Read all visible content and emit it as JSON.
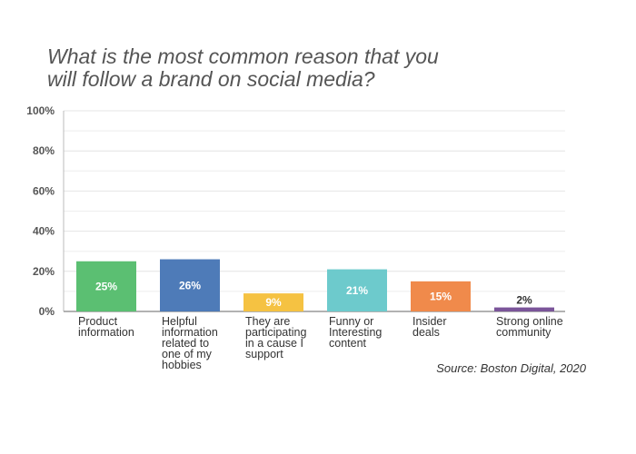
{
  "title_lines": [
    "What is the most common reason that you",
    "will follow a brand on social media?"
  ],
  "source": "Source: Boston Digital, 2020",
  "chart_data": {
    "type": "bar",
    "title": "What is the most common reason that you will follow a brand on social media?",
    "categories": [
      [
        "Product",
        "information"
      ],
      [
        "Helpful",
        "information",
        "related to",
        "one of my",
        "hobbies"
      ],
      [
        "They are",
        "participating",
        "in a cause I",
        "support"
      ],
      [
        "Funny or",
        "Interesting",
        "content"
      ],
      [
        "Insider",
        "deals"
      ],
      [
        "Strong online",
        "community"
      ]
    ],
    "values": [
      25,
      26,
      9,
      21,
      15,
      2
    ],
    "value_labels": [
      "25%",
      "26%",
      "9%",
      "21%",
      "15%",
      "2%"
    ],
    "colors": [
      "#5bbf72",
      "#4e7bb8",
      "#f5c242",
      "#6dcacc",
      "#f08a4b",
      "#7b559a"
    ],
    "value_label_colors": [
      "#ffffff",
      "#ffffff",
      "#ffffff",
      "#ffffff",
      "#ffffff",
      "#333333"
    ],
    "y_ticks": [
      "0%",
      "20%",
      "40%",
      "60%",
      "80%",
      "100%"
    ],
    "ylim": [
      0,
      100
    ],
    "grid": true
  }
}
